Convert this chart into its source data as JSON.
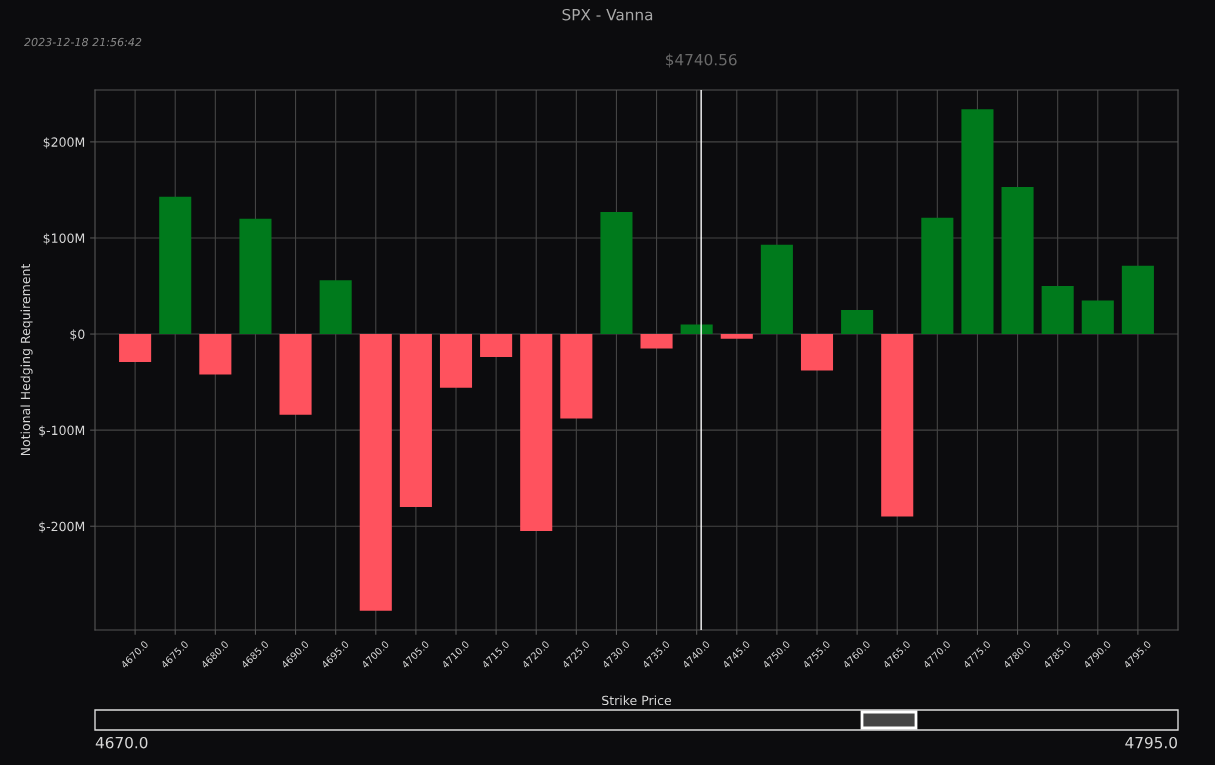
{
  "chart_data": {
    "type": "bar",
    "title": "SPX - Vanna",
    "xlabel": "Strike Price",
    "ylabel": "Notional Hedging Requirement",
    "annotations": [
      "2023-12-18 21:56:42",
      "4670.0",
      "4795.0"
    ],
    "x": [
      4670,
      4675,
      4680,
      4685,
      4690,
      4695,
      4700,
      4705,
      4710,
      4715,
      4720,
      4725,
      4730,
      4735,
      4740,
      4745,
      4750,
      4755,
      4760,
      4765,
      4770,
      4775,
      4780,
      4785,
      4790,
      4795
    ],
    "values": [
      -29,
      143,
      -42,
      120,
      -84,
      56,
      -288,
      -180,
      -56,
      -24,
      -205,
      -88,
      127,
      -15,
      10,
      -5,
      93,
      -38,
      25,
      -190,
      121,
      234,
      153,
      50,
      35,
      71
    ],
    "colors": [
      "#ff525e",
      "#007a1c",
      "#ff525e",
      "#007a1c",
      "#ff525e",
      "#007a1c",
      "#ff525e",
      "#ff525e",
      "#ff525e",
      "#ff525e",
      "#ff525e",
      "#ff525e",
      "#007a1c",
      "#ff525e",
      "#007a1c",
      "#ff525e",
      "#007a1c",
      "#ff525e",
      "#007a1c",
      "#ff525e",
      "#007a1c",
      "#007a1c",
      "#007a1c",
      "#007a1c",
      "#007a1c",
      "#007a1c"
    ],
    "xlim": [
      4665,
      4800
    ],
    "ylim": [
      -308,
      254
    ],
    "xticks": [
      {
        "value": 4670,
        "label": "4670.0"
      },
      {
        "value": 4675,
        "label": "4675.0"
      },
      {
        "value": 4680,
        "label": "4680.0"
      },
      {
        "value": 4685,
        "label": "4685.0"
      },
      {
        "value": 4690,
        "label": "4690.0"
      },
      {
        "value": 4695,
        "label": "4695.0"
      },
      {
        "value": 4700,
        "label": "4700.0"
      },
      {
        "value": 4705,
        "label": "4705.0"
      },
      {
        "value": 4710,
        "label": "4710.0"
      },
      {
        "value": 4715,
        "label": "4715.0"
      },
      {
        "value": 4720,
        "label": "4720.0"
      },
      {
        "value": 4725,
        "label": "4725.0"
      },
      {
        "value": 4730,
        "label": "4730.0"
      },
      {
        "value": 4735,
        "label": "4735.0"
      },
      {
        "value": 4740,
        "label": "4740.0"
      },
      {
        "value": 4745,
        "label": "4745.0"
      },
      {
        "value": 4750,
        "label": "4750.0"
      },
      {
        "value": 4755,
        "label": "4755.0"
      },
      {
        "value": 4760,
        "label": "4760.0"
      },
      {
        "value": 4765,
        "label": "4765.0"
      },
      {
        "value": 4770,
        "label": "4770.0"
      },
      {
        "value": 4775,
        "label": "4775.0"
      },
      {
        "value": 4780,
        "label": "4780.0"
      },
      {
        "value": 4785,
        "label": "4785.0"
      },
      {
        "value": 4790,
        "label": "4790.0"
      },
      {
        "value": 4795,
        "label": "4795.0"
      }
    ],
    "yticks": [
      {
        "value": -200,
        "label": "$-200M"
      },
      {
        "value": -100,
        "label": "$-100M"
      },
      {
        "value": 0,
        "label": "$0"
      },
      {
        "value": 100,
        "label": "$100M"
      },
      {
        "value": 200,
        "label": "$200M"
      }
    ],
    "ref_lines": [
      {
        "axis": "x",
        "value": 4740.56,
        "label": "$4740.56",
        "color": "#ffffff"
      }
    ],
    "grid": true
  }
}
